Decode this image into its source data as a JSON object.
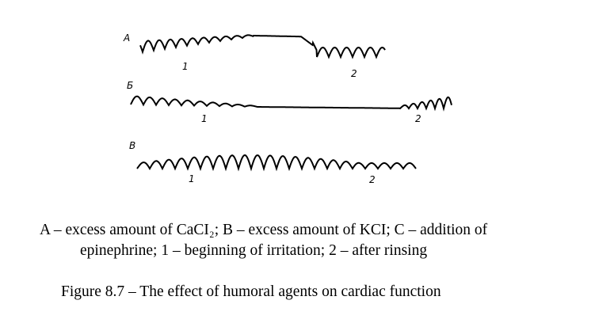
{
  "figure": {
    "traces": [
      {
        "label": "А",
        "mark_1": "1",
        "mark_2": "2"
      },
      {
        "label": "Б",
        "mark_1": "1",
        "mark_2": "2"
      },
      {
        "label": "В",
        "mark_1": "1",
        "mark_2": "2"
      }
    ],
    "legend_line_1": "A – excess amount of CaCI₂; B – excess amount of KCI; C – addition of",
    "legend_line_2": "epinephrine; 1 – beginning of irritation; 2 – after rinsing",
    "caption": "Figure 8.7 – The effect of humoral agents on cardiac function"
  }
}
